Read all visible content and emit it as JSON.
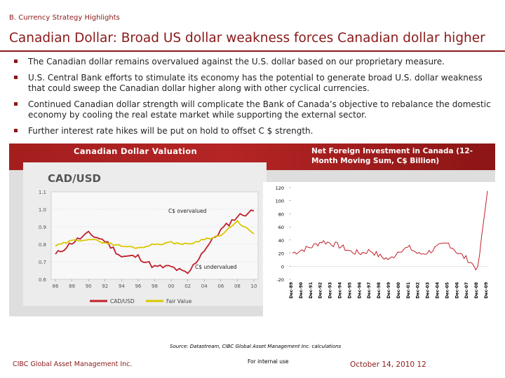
{
  "header": {
    "section": "B. Currency Strategy Highlights",
    "title": "Canadian Dollar: Broad US dollar weakness forces Canadian dollar higher"
  },
  "bullets": [
    "The Canadian dollar remains overvalued against the U.S. dollar based on our proprietary measure.",
    "U.S. Central Bank efforts to stimulate its economy has the potential to generate broad U.S. dollar weakness that could sweep the Canadian dollar higher along with other cyclical currencies.",
    "Continued Canadian dollar strength will complicate the Bank of Canada’s objective to rebalance the domestic economy by cooling the real estate market while supporting the external sector.",
    "Further interest rate hikes will be put on hold to offset C $ strength."
  ],
  "panel": {
    "left_heading": "Canadian Dollar Valuation",
    "right_heading": "Net Foreign Investment in Canada (12-Month Moving Sum, C$ Billion)"
  },
  "colors": {
    "brand": "#8a1818",
    "series_red": "#c0202a",
    "series_gold": "#d8c800"
  },
  "chart_data": [
    {
      "type": "line",
      "title": "CAD/USD",
      "x": [
        "86",
        "88",
        "90",
        "92",
        "94",
        "96",
        "98",
        "00",
        "02",
        "04",
        "06",
        "08",
        "10"
      ],
      "ylim": [
        0.6,
        1.1
      ],
      "yticks": [
        "1.1",
        "1.0",
        "0.9",
        "0.8",
        "0.7",
        "0.6"
      ],
      "series": [
        {
          "name": "CAD/USD",
          "values": [
            0.74,
            0.81,
            0.86,
            0.82,
            0.73,
            0.73,
            0.67,
            0.67,
            0.63,
            0.77,
            0.88,
            0.96,
            0.99
          ]
        },
        {
          "name": "Fair Value",
          "values": [
            0.79,
            0.82,
            0.83,
            0.81,
            0.79,
            0.78,
            0.8,
            0.81,
            0.8,
            0.83,
            0.85,
            0.93,
            0.86
          ]
        }
      ],
      "annotations": [
        "C$ overvalued",
        "C$ undervalued"
      ],
      "legend": [
        "CAD/USD",
        "Fair Value"
      ],
      "legend_position": "bottom-left"
    },
    {
      "type": "line",
      "title": "Net Foreign Investment in Canada (12-Month Moving Sum, C$ Billion)",
      "x": [
        "Dec-89",
        "Dec-90",
        "Dec-91",
        "Dec-92",
        "Dec-93",
        "Dec-94",
        "Dec-95",
        "Dec-96",
        "Dec-97",
        "Dec-98",
        "Dec-99",
        "Dec-00",
        "Dec-01",
        "Dec-02",
        "Dec-03",
        "Dec-04",
        "Dec-05",
        "Dec-06",
        "Dec-07",
        "Dec-08",
        "Dec-09"
      ],
      "ylim": [
        -20,
        120
      ],
      "yticks": [
        "120",
        "100",
        "80",
        "60",
        "40",
        "20",
        "0",
        "-20"
      ],
      "series": [
        {
          "name": "Net Foreign Investment",
          "values": [
            20,
            25,
            30,
            38,
            35,
            30,
            22,
            20,
            24,
            15,
            10,
            25,
            28,
            18,
            22,
            30,
            35,
            20,
            10,
            -5,
            115
          ]
        }
      ]
    }
  ],
  "source": "Source: Datastream, CIBC Global Asset Management Inc. calculations",
  "footer": {
    "company": "CIBC Global Asset Management Inc.",
    "internal": "For internal use",
    "date_page": "October 14, 2010 12"
  }
}
